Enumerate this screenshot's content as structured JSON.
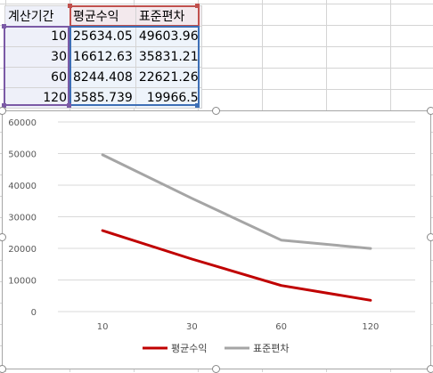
{
  "sheet": {
    "headers": [
      "계산기간",
      "평균수익",
      "표준편차"
    ],
    "rows": [
      [
        "10",
        "25634.05",
        "49603.96"
      ],
      [
        "30",
        "16612.63",
        "35831.21"
      ],
      [
        "60",
        "8244.408",
        "22621.26"
      ],
      [
        "120",
        "3585.739",
        "19966.5"
      ]
    ]
  },
  "chart_data": {
    "type": "line",
    "categories": [
      "10",
      "30",
      "60",
      "120"
    ],
    "series": [
      {
        "name": "평균수익",
        "values": [
          25634.05,
          16612.63,
          8244.408,
          3585.739
        ],
        "color": "#c00000"
      },
      {
        "name": "표준편차",
        "values": [
          49603.96,
          35831.21,
          22621.26,
          19966.5
        ],
        "color": "#a5a5a5"
      }
    ],
    "ylim": [
      0,
      60000
    ],
    "yticks": [
      "0",
      "10000",
      "20000",
      "30000",
      "40000",
      "50000",
      "60000"
    ],
    "grid": true,
    "legend": "bottom"
  }
}
